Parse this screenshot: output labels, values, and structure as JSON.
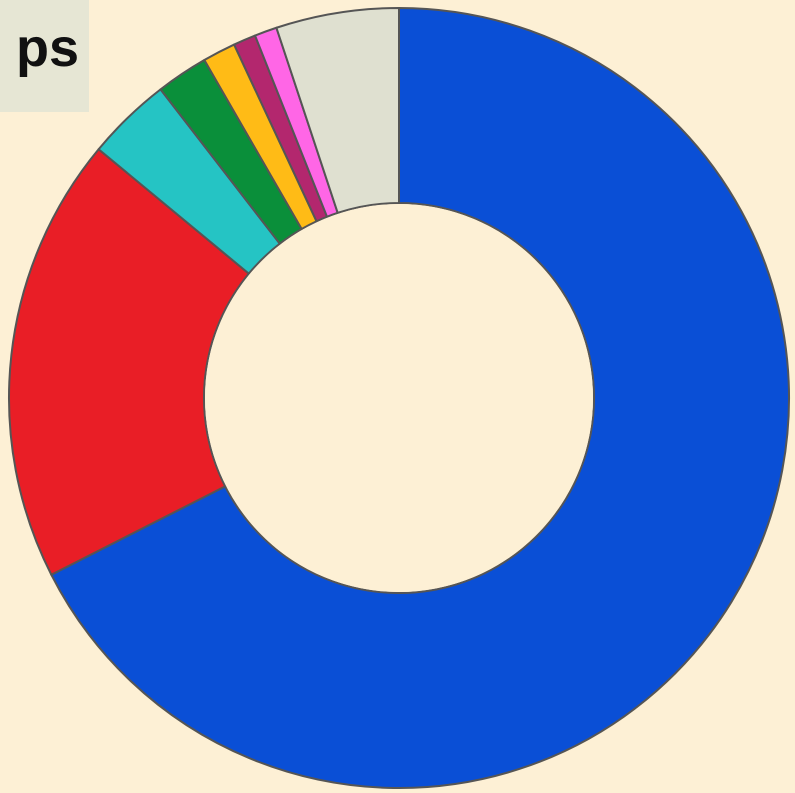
{
  "title_fragment": "ps",
  "chart_data": {
    "type": "pie",
    "style": "donut",
    "start": "12 o'clock",
    "direction": "clockwise",
    "slices": [
      {
        "value": 69.0,
        "color": "#0a4fd6"
      },
      {
        "value": 18.9,
        "color": "#e91e26"
      },
      {
        "value": 3.6,
        "color": "#25c4c4"
      },
      {
        "value": 2.2,
        "color": "#0a8f3a"
      },
      {
        "value": 1.4,
        "color": "#ffbb16"
      },
      {
        "value": 0.95,
        "color": "#b3276e"
      },
      {
        "value": 0.95,
        "color": "#ff66e6"
      },
      {
        "value": 5.2,
        "color": "#dfe0d0"
      }
    ],
    "stroke_color": "#555555",
    "hole_color": "#fdf0d5"
  }
}
